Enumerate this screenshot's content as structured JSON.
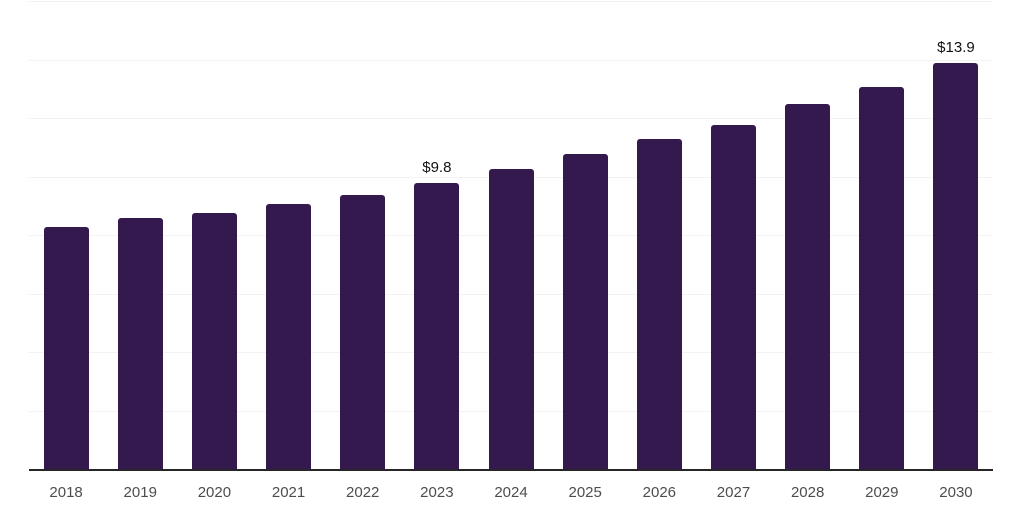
{
  "chart_data": {
    "type": "bar",
    "title": "",
    "xlabel": "",
    "ylabel": "",
    "categories": [
      "2018",
      "2019",
      "2020",
      "2021",
      "2022",
      "2023",
      "2024",
      "2025",
      "2026",
      "2027",
      "2028",
      "2029",
      "2030"
    ],
    "values": [
      8.3,
      8.6,
      8.8,
      9.1,
      9.4,
      9.8,
      10.3,
      10.8,
      11.3,
      11.8,
      12.5,
      13.1,
      13.9
    ],
    "bar_value_labels": [
      "",
      "",
      "",
      "",
      "",
      "$9.8",
      "",
      "",
      "",
      "",
      "",
      "",
      "$13.9"
    ],
    "ylim": [
      0,
      16
    ],
    "grid_step": 2,
    "grid": true,
    "legend_position": "none",
    "colors": {
      "background": "#ffffff",
      "bar": "#33194e",
      "gridline": "#f2f2f2",
      "axis_line": "#262626",
      "tick_label": "#4d4d4d",
      "value_label": "#111111"
    }
  }
}
